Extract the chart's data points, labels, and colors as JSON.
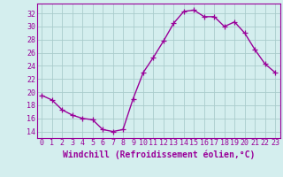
{
  "x": [
    0,
    1,
    2,
    3,
    4,
    5,
    6,
    7,
    8,
    9,
    10,
    11,
    12,
    13,
    14,
    15,
    16,
    17,
    18,
    19,
    20,
    21,
    22,
    23
  ],
  "y": [
    19.5,
    18.8,
    17.3,
    16.5,
    16.0,
    15.8,
    14.3,
    14.0,
    14.3,
    19.0,
    23.0,
    25.3,
    27.8,
    30.5,
    32.3,
    32.5,
    31.5,
    31.5,
    30.0,
    30.7,
    29.0,
    26.5,
    24.3,
    23.0
  ],
  "line_color": "#990099",
  "marker": "+",
  "marker_size": 4,
  "bg_color": "#d4eeee",
  "grid_color": "#bbdddd",
  "xlabel": "Windchill (Refroidissement éolien,°C)",
  "xlabel_color": "#990099",
  "xlabel_fontsize": 7,
  "ylabel_ticks": [
    14,
    16,
    18,
    20,
    22,
    24,
    26,
    28,
    30,
    32
  ],
  "xtick_labels": [
    "0",
    "1",
    "2",
    "3",
    "4",
    "5",
    "6",
    "7",
    "8",
    "9",
    "10",
    "11",
    "12",
    "13",
    "14",
    "15",
    "16",
    "17",
    "18",
    "19",
    "20",
    "21",
    "22",
    "23"
  ],
  "ylim": [
    13.0,
    33.5
  ],
  "xlim": [
    -0.5,
    23.5
  ],
  "tick_color": "#990099",
  "tick_fontsize": 6,
  "line_width": 1.0
}
